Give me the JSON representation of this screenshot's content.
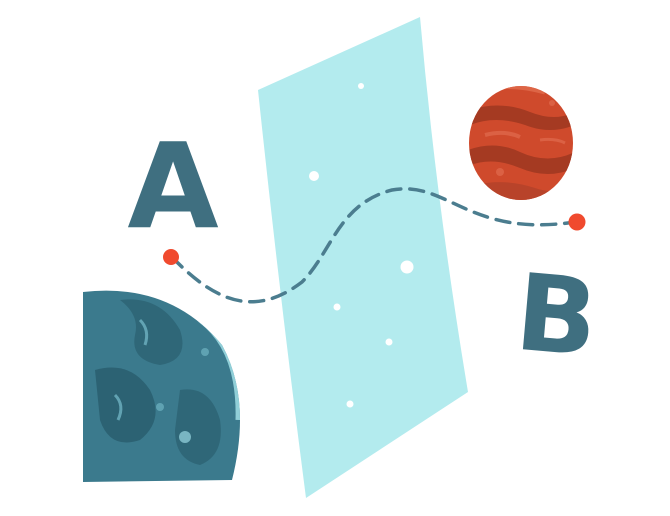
{
  "labels": {
    "point_a": "A",
    "point_b": "B"
  },
  "colors": {
    "background": "#ffffff",
    "portal_sheet": "#b3ebee",
    "portal_stars": "#ffffff",
    "letters": "#3f6f80",
    "path_dash": "#4b7d8f",
    "endpoint_dots": "#f04a2e",
    "earth_planet": "#3b7a8d",
    "earth_highlight": "#9ad8e0",
    "mars_planet": "#cf4a2c",
    "mars_bands": "#a53a22"
  },
  "icons": {
    "left_planet": "teal-planet-icon",
    "right_planet": "red-planet-icon",
    "portal": "wormhole-sheet-icon",
    "path": "dashed-trajectory-icon"
  }
}
